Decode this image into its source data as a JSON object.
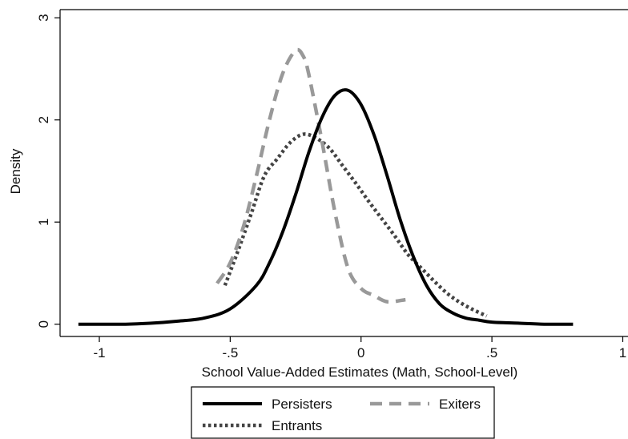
{
  "chart_data": {
    "type": "line",
    "title": "",
    "xlabel": "School Value-Added Estimates (Math, School-Level)",
    "ylabel": "Density",
    "xlim": [
      -1.15,
      1.02
    ],
    "ylim": [
      -0.12,
      3.08
    ],
    "xticks": [
      -1,
      -0.5,
      0,
      0.5,
      1
    ],
    "xtick_labels": [
      "-1",
      "-.5",
      "0",
      ".5",
      "1"
    ],
    "yticks": [
      0,
      1,
      2,
      3
    ],
    "ytick_labels": [
      "0",
      "1",
      "2",
      "3"
    ],
    "grid": false,
    "legend_position": "bottom",
    "series": [
      {
        "name": "Persisters",
        "style": "solid",
        "color": "#000000",
        "x": [
          -1.08,
          -0.9,
          -0.8,
          -0.7,
          -0.6,
          -0.5,
          -0.4,
          -0.35,
          -0.3,
          -0.25,
          -0.2,
          -0.15,
          -0.1,
          -0.05,
          0.0,
          0.05,
          0.1,
          0.15,
          0.2,
          0.25,
          0.3,
          0.35,
          0.4,
          0.45,
          0.5,
          0.6,
          0.7,
          0.81
        ],
        "y": [
          0.0,
          0.0,
          0.01,
          0.03,
          0.06,
          0.15,
          0.38,
          0.6,
          0.9,
          1.27,
          1.68,
          2.02,
          2.24,
          2.29,
          2.15,
          1.85,
          1.45,
          1.02,
          0.66,
          0.38,
          0.2,
          0.11,
          0.06,
          0.04,
          0.02,
          0.01,
          0.0,
          0.0
        ]
      },
      {
        "name": "Exiters",
        "style": "dashed",
        "color": "#999999",
        "x": [
          -0.55,
          -0.5,
          -0.45,
          -0.4,
          -0.35,
          -0.3,
          -0.25,
          -0.22,
          -0.2,
          -0.15,
          -0.1,
          -0.05,
          0.0,
          0.05,
          0.1,
          0.17
        ],
        "y": [
          0.4,
          0.6,
          0.95,
          1.45,
          2.0,
          2.45,
          2.68,
          2.62,
          2.45,
          1.8,
          1.1,
          0.55,
          0.35,
          0.28,
          0.22,
          0.24
        ]
      },
      {
        "name": "Entrants",
        "style": "dotted",
        "color": "#444444",
        "x": [
          -0.52,
          -0.47,
          -0.42,
          -0.37,
          -0.32,
          -0.27,
          -0.22,
          -0.17,
          -0.12,
          -0.07,
          -0.02,
          0.03,
          0.08,
          0.13,
          0.18,
          0.23,
          0.28,
          0.33,
          0.38,
          0.43,
          0.48
        ],
        "y": [
          0.38,
          0.72,
          1.08,
          1.45,
          1.62,
          1.78,
          1.86,
          1.82,
          1.72,
          1.55,
          1.38,
          1.2,
          1.03,
          0.86,
          0.68,
          0.55,
          0.42,
          0.3,
          0.21,
          0.14,
          0.08
        ]
      }
    ]
  }
}
